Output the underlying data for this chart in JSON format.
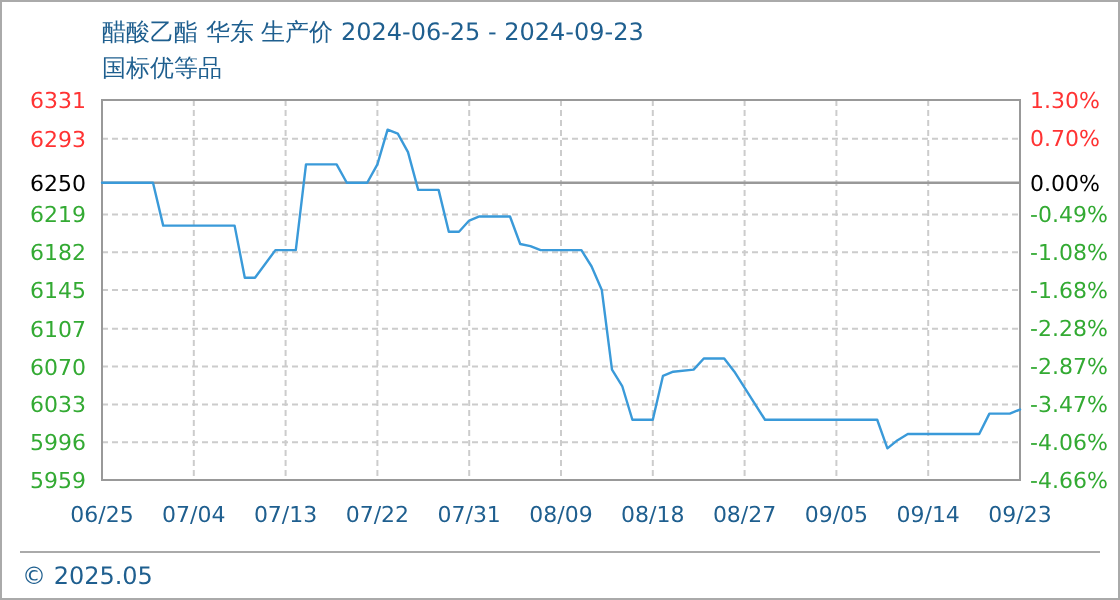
{
  "chart_data": {
    "type": "line",
    "title": "醋酸乙酯 华东 生产价 2024-06-25 - 2024-09-23",
    "subtitle": "国标优等品",
    "annotations": [
      "© 2025.05"
    ],
    "x": [
      "2024-06-25",
      "2024-06-30",
      "2024-07-01",
      "2024-07-08",
      "2024-07-09",
      "2024-07-10",
      "2024-07-12",
      "2024-07-14",
      "2024-07-15",
      "2024-07-18",
      "2024-07-19",
      "2024-07-21",
      "2024-07-22",
      "2024-07-23",
      "2024-07-24",
      "2024-07-25",
      "2024-07-26",
      "2024-07-28",
      "2024-07-29",
      "2024-07-30",
      "2024-07-31",
      "2024-08-01",
      "2024-08-04",
      "2024-08-05",
      "2024-08-06",
      "2024-08-07",
      "2024-08-11",
      "2024-08-12",
      "2024-08-13",
      "2024-08-14",
      "2024-08-15",
      "2024-08-16",
      "2024-08-18",
      "2024-08-19",
      "2024-08-20",
      "2024-08-22",
      "2024-08-23",
      "2024-08-25",
      "2024-08-26",
      "2024-08-29",
      "2024-09-09",
      "2024-09-10",
      "2024-09-11",
      "2024-09-12",
      "2024-09-19",
      "2024-09-20",
      "2024-09-22",
      "2024-09-23"
    ],
    "series": [
      {
        "color": "#3a9ad9",
        "values": [
          6250,
          6250,
          6208,
          6208,
          6157,
          6157,
          6184,
          6184,
          6268,
          6268,
          6250,
          6250,
          6268,
          6302,
          6298,
          6280,
          6243,
          6243,
          6202,
          6202,
          6213,
          6217,
          6217,
          6190,
          6188,
          6184,
          6184,
          6168,
          6145,
          6067,
          6051,
          6018,
          6018,
          6061,
          6065,
          6067,
          6078,
          6078,
          6065,
          6018,
          6018,
          5990,
          5998,
          6004,
          6004,
          6024,
          6024,
          6028
        ]
      }
    ],
    "xlim": [
      "2024-06-25",
      "2024-09-23"
    ],
    "xticks": [
      {
        "value": "2024-06-25",
        "label": "06/25"
      },
      {
        "value": "2024-07-04",
        "label": "07/04"
      },
      {
        "value": "2024-07-13",
        "label": "07/13"
      },
      {
        "value": "2024-07-22",
        "label": "07/22"
      },
      {
        "value": "2024-07-31",
        "label": "07/31"
      },
      {
        "value": "2024-08-09",
        "label": "08/09"
      },
      {
        "value": "2024-08-18",
        "label": "08/18"
      },
      {
        "value": "2024-08-27",
        "label": "08/27"
      },
      {
        "value": "2024-09-05",
        "label": "09/05"
      },
      {
        "value": "2024-09-14",
        "label": "09/14"
      },
      {
        "value": "2024-09-23",
        "label": "09/23"
      }
    ],
    "ylim": [
      5959,
      6331
    ],
    "yticks": [
      6331,
      6293,
      6250,
      6219,
      6182,
      6145,
      6107,
      6070,
      6033,
      5996,
      5959
    ],
    "y2lim": [
      -4.66,
      1.3
    ],
    "y2ticks": [
      {
        "value": 1.3,
        "label": "1.30%"
      },
      {
        "value": 0.7,
        "label": "0.70%"
      },
      {
        "value": 0,
        "label": "0.00%"
      },
      {
        "value": -0.49,
        "label": "-0.49%"
      },
      {
        "value": -1.08,
        "label": "-1.08%"
      },
      {
        "value": -1.68,
        "label": "-1.68%"
      },
      {
        "value": -2.28,
        "label": "-2.28%"
      },
      {
        "value": -2.87,
        "label": "-2.87%"
      },
      {
        "value": -3.47,
        "label": "-3.47%"
      },
      {
        "value": -4.06,
        "label": "-4.06%"
      },
      {
        "value": -4.66,
        "label": "-4.66%"
      }
    ],
    "ref_lines": [
      {
        "axis": "y",
        "value": 6250,
        "color": "#999999"
      }
    ],
    "grid": true,
    "marker": "none",
    "line_style": "solid"
  }
}
